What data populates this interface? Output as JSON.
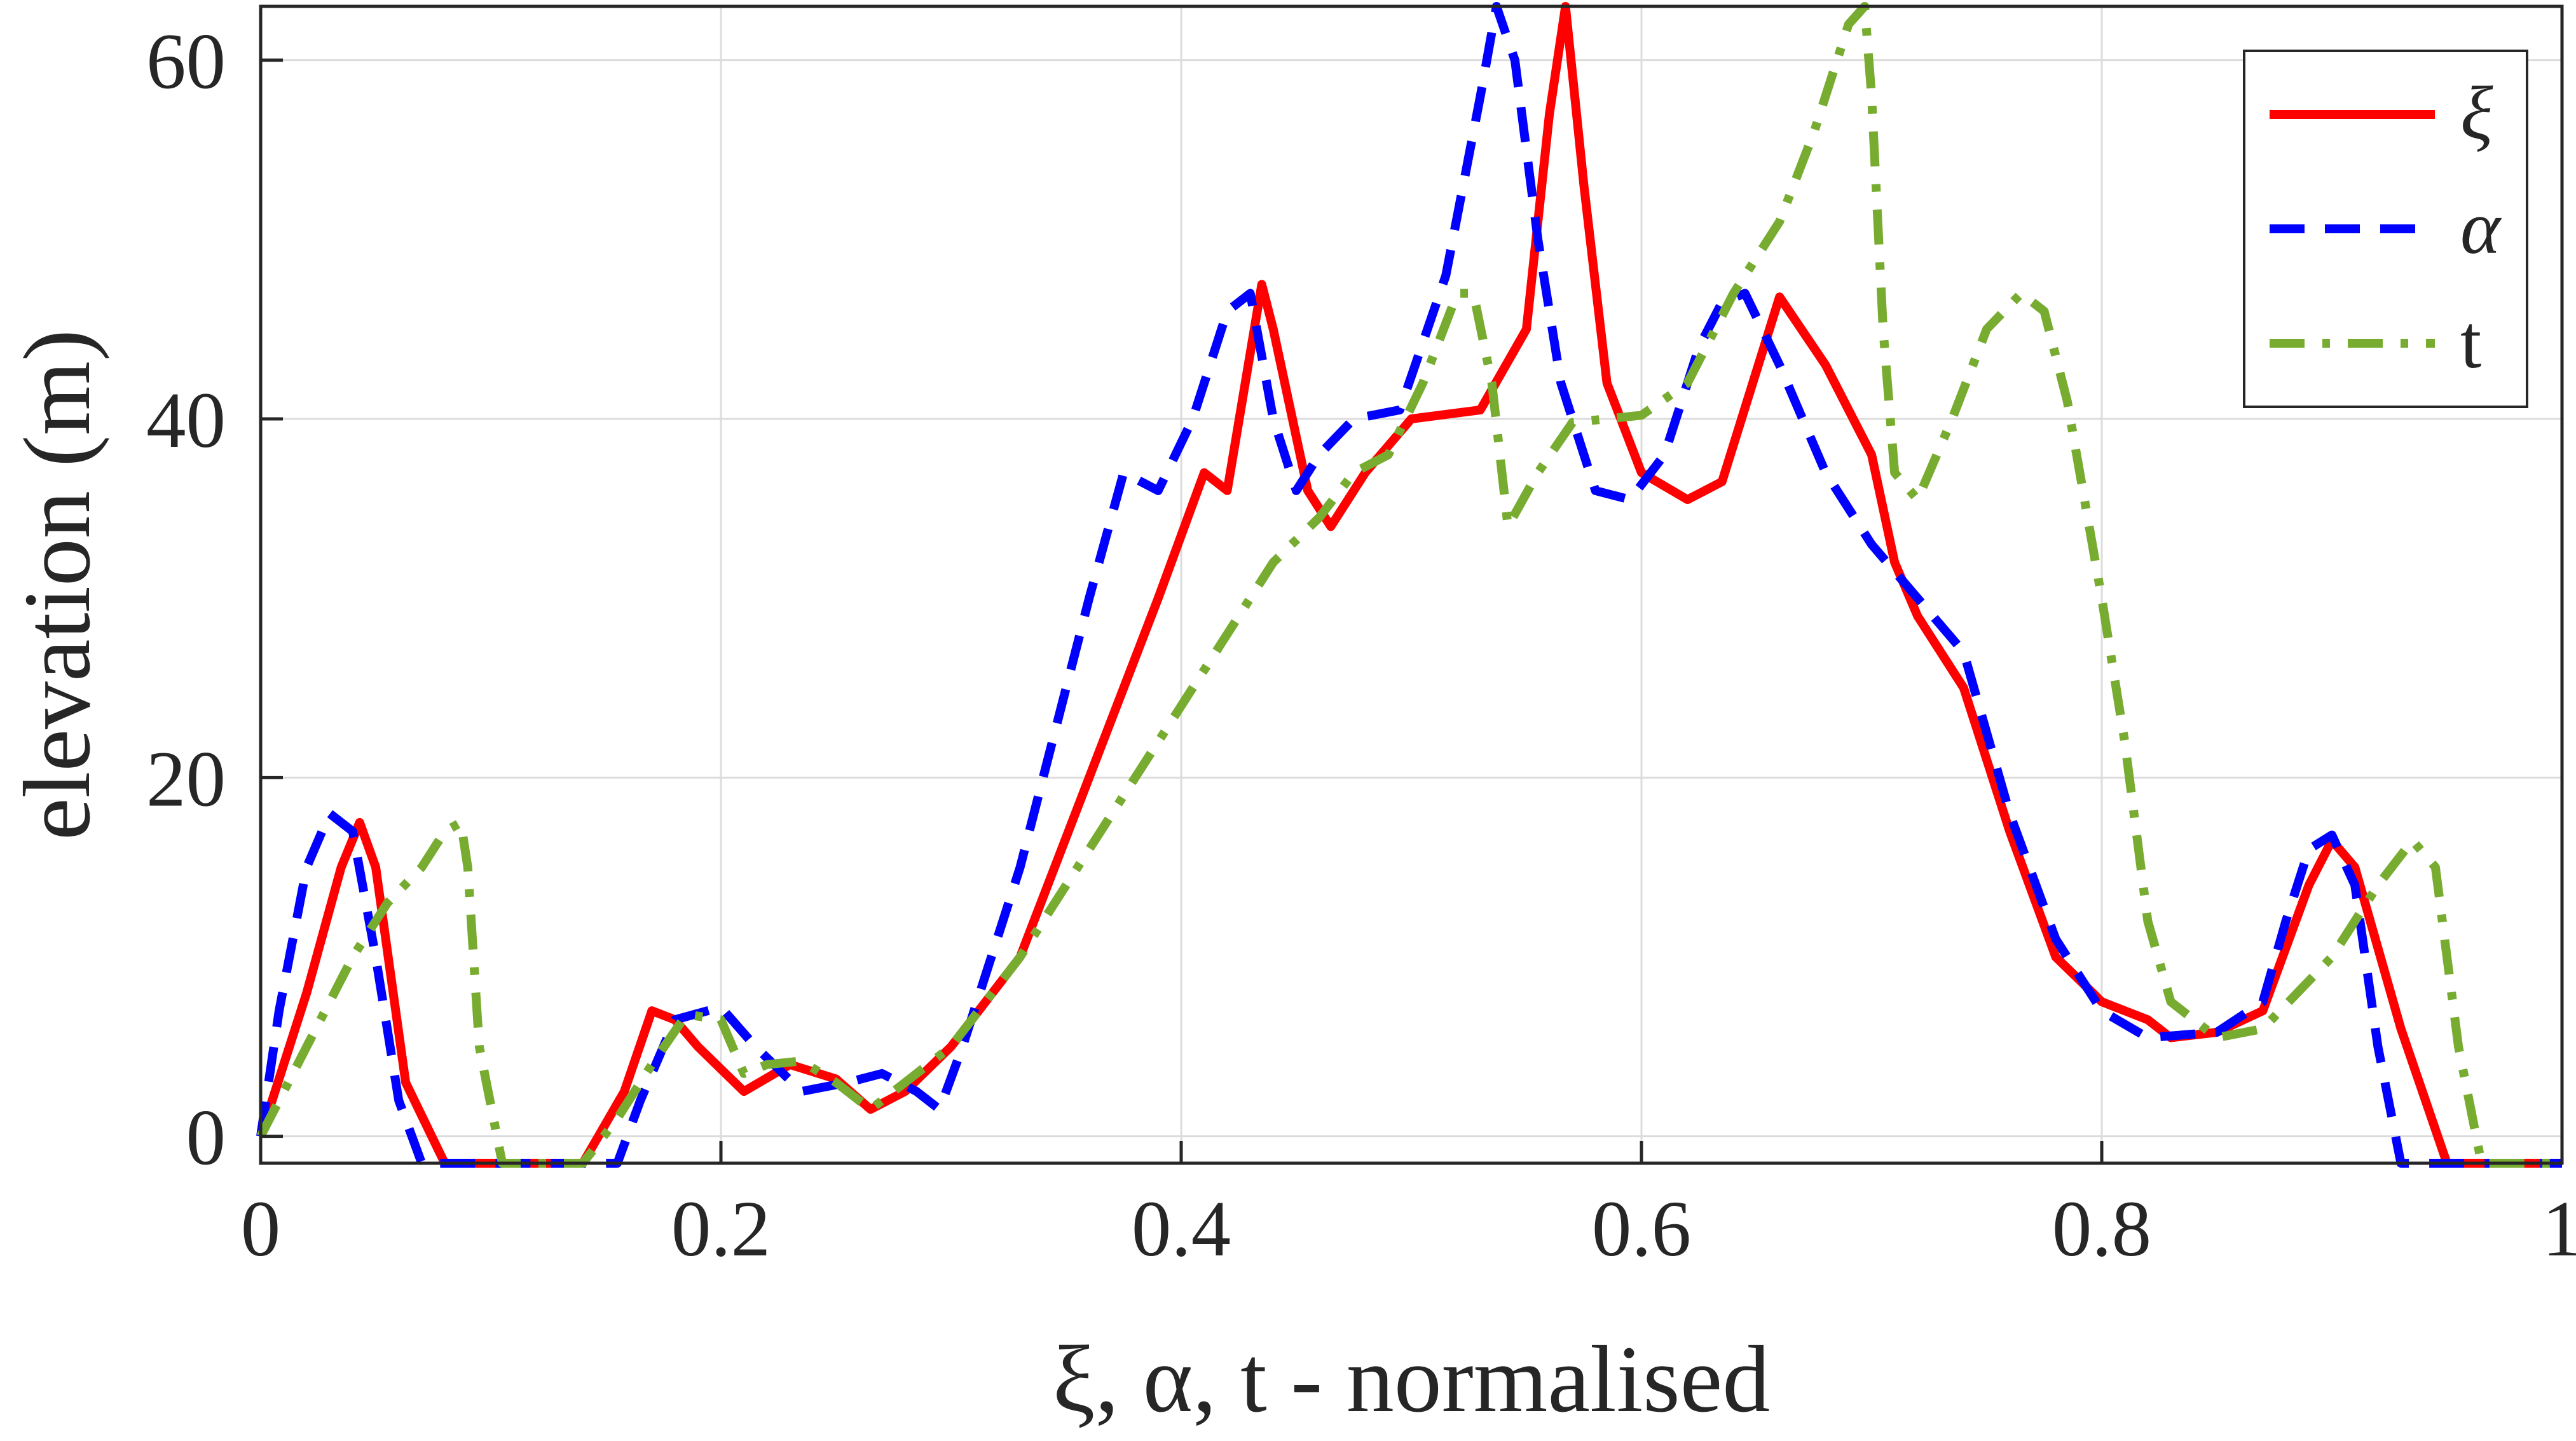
{
  "chart_data": {
    "type": "line",
    "xlabel": "ξ, α, t - normalised",
    "ylabel": "elevation (m)",
    "xlim": [
      0,
      1
    ],
    "ylim": [
      -1.5,
      63
    ],
    "grid": true,
    "legend_position": "top-right",
    "x_ticks": [
      0,
      0.2,
      0.4,
      0.6,
      0.8,
      1
    ],
    "x_tick_labels": [
      "0",
      "0.2",
      "0.4",
      "0.6",
      "0.8",
      "1"
    ],
    "y_ticks": [
      0,
      20,
      40,
      60
    ],
    "y_tick_labels": [
      "0",
      "20",
      "40",
      "60"
    ],
    "series": [
      {
        "name": "ξ",
        "color": "#ff0000",
        "dash": "solid",
        "points": [
          [
            0,
            0
          ],
          [
            0.02,
            8
          ],
          [
            0.035,
            15
          ],
          [
            0.043,
            17.5
          ],
          [
            0.05,
            15
          ],
          [
            0.063,
            3
          ],
          [
            0.08,
            -1.5
          ],
          [
            0.14,
            -1.5
          ],
          [
            0.158,
            2.5
          ],
          [
            0.17,
            7
          ],
          [
            0.18,
            6.5
          ],
          [
            0.19,
            5
          ],
          [
            0.21,
            2.5
          ],
          [
            0.23,
            4
          ],
          [
            0.25,
            3.2
          ],
          [
            0.265,
            1.5
          ],
          [
            0.28,
            2.5
          ],
          [
            0.3,
            5
          ],
          [
            0.33,
            10
          ],
          [
            0.36,
            20
          ],
          [
            0.39,
            30
          ],
          [
            0.41,
            37
          ],
          [
            0.42,
            36
          ],
          [
            0.435,
            47.5
          ],
          [
            0.44,
            45
          ],
          [
            0.455,
            36
          ],
          [
            0.465,
            34
          ],
          [
            0.48,
            37
          ],
          [
            0.5,
            40
          ],
          [
            0.53,
            40.5
          ],
          [
            0.55,
            45
          ],
          [
            0.56,
            57
          ],
          [
            0.567,
            63
          ],
          [
            0.575,
            53
          ],
          [
            0.585,
            42
          ],
          [
            0.6,
            37
          ],
          [
            0.62,
            35.5
          ],
          [
            0.635,
            36.5
          ],
          [
            0.66,
            46.8
          ],
          [
            0.68,
            43
          ],
          [
            0.7,
            38
          ],
          [
            0.71,
            32
          ],
          [
            0.72,
            29
          ],
          [
            0.74,
            25
          ],
          [
            0.76,
            17
          ],
          [
            0.78,
            10
          ],
          [
            0.8,
            7.5
          ],
          [
            0.82,
            6.5
          ],
          [
            0.83,
            5.5
          ],
          [
            0.85,
            5.8
          ],
          [
            0.87,
            7
          ],
          [
            0.89,
            14
          ],
          [
            0.9,
            16.5
          ],
          [
            0.91,
            15
          ],
          [
            0.93,
            6
          ],
          [
            0.95,
            -1.5
          ],
          [
            1,
            -1.5
          ]
        ]
      },
      {
        "name": "α",
        "color": "#0000ff",
        "dash": "dashed",
        "points": [
          [
            0,
            0
          ],
          [
            0.008,
            7
          ],
          [
            0.02,
            15
          ],
          [
            0.03,
            18
          ],
          [
            0.04,
            17
          ],
          [
            0.05,
            10
          ],
          [
            0.06,
            2
          ],
          [
            0.07,
            -1.5
          ],
          [
            0.155,
            -1.5
          ],
          [
            0.165,
            2
          ],
          [
            0.18,
            6.5
          ],
          [
            0.2,
            7.2
          ],
          [
            0.215,
            5
          ],
          [
            0.235,
            2.5
          ],
          [
            0.255,
            3
          ],
          [
            0.27,
            3.5
          ],
          [
            0.285,
            2.5
          ],
          [
            0.295,
            1.5
          ],
          [
            0.305,
            5
          ],
          [
            0.33,
            15
          ],
          [
            0.36,
            30
          ],
          [
            0.375,
            37
          ],
          [
            0.39,
            36
          ],
          [
            0.405,
            40
          ],
          [
            0.42,
            46
          ],
          [
            0.43,
            47
          ],
          [
            0.44,
            40
          ],
          [
            0.45,
            36
          ],
          [
            0.46,
            38
          ],
          [
            0.475,
            40
          ],
          [
            0.495,
            40.5
          ],
          [
            0.515,
            48
          ],
          [
            0.53,
            58
          ],
          [
            0.537,
            63
          ],
          [
            0.545,
            60
          ],
          [
            0.555,
            50
          ],
          [
            0.565,
            42
          ],
          [
            0.58,
            36
          ],
          [
            0.595,
            35.5
          ],
          [
            0.61,
            38
          ],
          [
            0.625,
            44
          ],
          [
            0.635,
            46.5
          ],
          [
            0.645,
            47
          ],
          [
            0.66,
            43
          ],
          [
            0.68,
            37
          ],
          [
            0.7,
            33
          ],
          [
            0.72,
            30
          ],
          [
            0.74,
            27
          ],
          [
            0.76,
            18
          ],
          [
            0.78,
            11
          ],
          [
            0.8,
            7
          ],
          [
            0.82,
            5.5
          ],
          [
            0.85,
            5.8
          ],
          [
            0.87,
            7.5
          ],
          [
            0.88,
            12
          ],
          [
            0.89,
            16
          ],
          [
            0.9,
            16.8
          ],
          [
            0.91,
            14
          ],
          [
            0.92,
            5
          ],
          [
            0.93,
            -1.5
          ],
          [
            1,
            -1.5
          ]
        ]
      },
      {
        "name": "t",
        "color": "#77ac30",
        "dash": "dashdot",
        "points": [
          [
            0,
            0
          ],
          [
            0.02,
            5
          ],
          [
            0.04,
            10
          ],
          [
            0.055,
            13
          ],
          [
            0.07,
            15
          ],
          [
            0.08,
            17
          ],
          [
            0.087,
            17.5
          ],
          [
            0.09,
            15
          ],
          [
            0.095,
            5
          ],
          [
            0.105,
            -1.5
          ],
          [
            0.14,
            -1.5
          ],
          [
            0.155,
            1
          ],
          [
            0.17,
            4
          ],
          [
            0.185,
            6.8
          ],
          [
            0.2,
            6.5
          ],
          [
            0.21,
            3.5
          ],
          [
            0.22,
            4
          ],
          [
            0.235,
            4.2
          ],
          [
            0.25,
            3
          ],
          [
            0.265,
            1.5
          ],
          [
            0.28,
            3
          ],
          [
            0.3,
            5
          ],
          [
            0.33,
            10
          ],
          [
            0.36,
            16
          ],
          [
            0.39,
            22
          ],
          [
            0.42,
            28
          ],
          [
            0.44,
            32
          ],
          [
            0.46,
            34.5
          ],
          [
            0.475,
            37
          ],
          [
            0.49,
            38
          ],
          [
            0.505,
            42
          ],
          [
            0.52,
            47
          ],
          [
            0.527,
            47
          ],
          [
            0.535,
            42
          ],
          [
            0.542,
            34
          ],
          [
            0.555,
            37
          ],
          [
            0.57,
            39.8
          ],
          [
            0.6,
            40.2
          ],
          [
            0.62,
            42
          ],
          [
            0.64,
            47
          ],
          [
            0.66,
            51
          ],
          [
            0.675,
            56
          ],
          [
            0.69,
            62
          ],
          [
            0.697,
            63
          ],
          [
            0.7,
            58
          ],
          [
            0.705,
            45
          ],
          [
            0.71,
            37
          ],
          [
            0.72,
            35.5
          ],
          [
            0.735,
            40
          ],
          [
            0.75,
            45
          ],
          [
            0.765,
            47
          ],
          [
            0.775,
            46
          ],
          [
            0.785,
            41
          ],
          [
            0.8,
            30
          ],
          [
            0.81,
            22
          ],
          [
            0.82,
            12
          ],
          [
            0.83,
            7.5
          ],
          [
            0.84,
            6.5
          ],
          [
            0.85,
            5.5
          ],
          [
            0.87,
            6
          ],
          [
            0.9,
            10
          ],
          [
            0.92,
            14
          ],
          [
            0.935,
            16.5
          ],
          [
            0.945,
            15
          ],
          [
            0.955,
            5
          ],
          [
            0.965,
            -1.5
          ],
          [
            1,
            -1.5
          ]
        ]
      }
    ]
  }
}
